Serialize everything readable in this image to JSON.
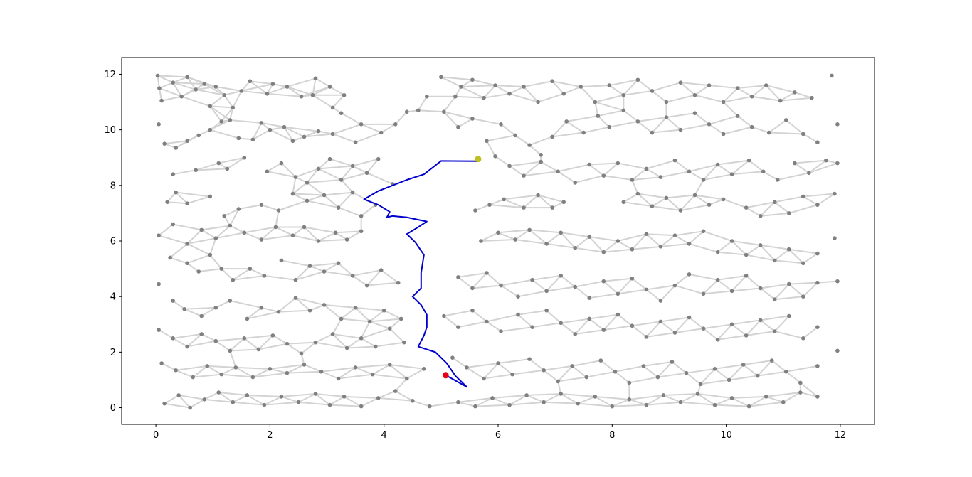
{
  "chart_data": {
    "type": "scatter",
    "title": "",
    "xlabel": "",
    "ylabel": "",
    "xlim": [
      -0.6,
      12.6
    ],
    "ylim": [
      -0.6,
      12.6
    ],
    "x_ticks": [
      "0",
      "2",
      "4",
      "6",
      "8",
      "10",
      "12"
    ],
    "y_ticks": [
      "0",
      "2",
      "4",
      "6",
      "8",
      "10",
      "12"
    ],
    "grid": false,
    "legend": "none",
    "colors": {
      "node": "#808080",
      "edge": "#d3d3d3",
      "path": "#0000cc",
      "start": "#e6001a",
      "goal": "#bfbf20",
      "axes": "#000000"
    },
    "nodes": [
      [
        0.03,
        11.95
      ],
      [
        0.06,
        11.5
      ],
      [
        0.1,
        11.05
      ],
      [
        0.3,
        11.7
      ],
      [
        0.45,
        11.2
      ],
      [
        0.55,
        11.9
      ],
      [
        0.7,
        11.45
      ],
      [
        0.85,
        11.65
      ],
      [
        0.95,
        10.85
      ],
      [
        1.05,
        11.55
      ],
      [
        1.2,
        11.25
      ],
      [
        1.35,
        10.8
      ],
      [
        1.5,
        11.4
      ],
      [
        1.65,
        11.75
      ],
      [
        1.95,
        11.3
      ],
      [
        2.05,
        11.65
      ],
      [
        2.3,
        11.55
      ],
      [
        2.55,
        11.2
      ],
      [
        2.75,
        11.25
      ],
      [
        2.8,
        11.85
      ],
      [
        3.05,
        11.55
      ],
      [
        3.1,
        10.8
      ],
      [
        3.3,
        11.25
      ],
      [
        0.05,
        10.2
      ],
      [
        0.15,
        9.5
      ],
      [
        0.35,
        9.35
      ],
      [
        0.55,
        9.6
      ],
      [
        0.75,
        9.8
      ],
      [
        0.95,
        10
      ],
      [
        1.15,
        10.3
      ],
      [
        1.3,
        10.35
      ],
      [
        1.45,
        9.7
      ],
      [
        1.7,
        9.65
      ],
      [
        1.85,
        10.25
      ],
      [
        2.0,
        10
      ],
      [
        2.25,
        10.1
      ],
      [
        2.4,
        9.6
      ],
      [
        2.6,
        9.75
      ],
      [
        2.85,
        9.95
      ],
      [
        3.1,
        9.85
      ],
      [
        3.25,
        10.6
      ],
      [
        3.5,
        9.55
      ],
      [
        3.6,
        10.2
      ],
      [
        3.95,
        9.9
      ],
      [
        4.2,
        10.2
      ],
      [
        4.4,
        10.65
      ],
      [
        4.6,
        10.7
      ],
      [
        4.75,
        11.2
      ],
      [
        5.05,
        10.65
      ],
      [
        0.3,
        8.4
      ],
      [
        0.7,
        8.55
      ],
      [
        1.1,
        8.8
      ],
      [
        1.25,
        8.6
      ],
      [
        1.55,
        9.0
      ],
      [
        1.95,
        8.5
      ],
      [
        2.2,
        8.8
      ],
      [
        2.45,
        8.3
      ],
      [
        2.65,
        8.1
      ],
      [
        2.85,
        8.6
      ],
      [
        3.05,
        8.95
      ],
      [
        3.25,
        8.2
      ],
      [
        3.45,
        8.7
      ],
      [
        3.7,
        8.45
      ],
      [
        3.9,
        8.95
      ],
      [
        4.15,
        8.05
      ],
      [
        0.2,
        7.4
      ],
      [
        0.35,
        7.75
      ],
      [
        0.55,
        7.35
      ],
      [
        0.95,
        7.6
      ],
      [
        1.2,
        6.9
      ],
      [
        1.45,
        7.15
      ],
      [
        1.85,
        7.3
      ],
      [
        2.15,
        7.1
      ],
      [
        2.4,
        7.7
      ],
      [
        2.65,
        7.45
      ],
      [
        2.95,
        7.65
      ],
      [
        3.2,
        7.2
      ],
      [
        3.45,
        7.75
      ],
      [
        3.6,
        6.9
      ],
      [
        3.85,
        7.3
      ],
      [
        0.05,
        6.2
      ],
      [
        0.3,
        6.6
      ],
      [
        0.55,
        5.9
      ],
      [
        0.8,
        6.4
      ],
      [
        1.05,
        6.1
      ],
      [
        1.3,
        6.55
      ],
      [
        1.55,
        6.3
      ],
      [
        1.85,
        6.05
      ],
      [
        2.1,
        6.5
      ],
      [
        2.4,
        6.2
      ],
      [
        2.6,
        6.5
      ],
      [
        2.85,
        6.0
      ],
      [
        3.15,
        6.3
      ],
      [
        3.35,
        6.05
      ],
      [
        3.6,
        6.35
      ],
      [
        0.25,
        5.4
      ],
      [
        0.55,
        5.2
      ],
      [
        0.75,
        4.9
      ],
      [
        0.95,
        5.5
      ],
      [
        1.15,
        5.0
      ],
      [
        1.35,
        4.6
      ],
      [
        1.65,
        5.0
      ],
      [
        1.9,
        4.75
      ],
      [
        2.2,
        5.3
      ],
      [
        2.45,
        4.6
      ],
      [
        2.7,
        5.1
      ],
      [
        2.95,
        4.9
      ],
      [
        3.2,
        5.2
      ],
      [
        3.45,
        4.75
      ],
      [
        3.7,
        4.4
      ],
      [
        3.95,
        4.95
      ],
      [
        4.25,
        4.5
      ],
      [
        0.05,
        4.45
      ],
      [
        0.3,
        3.85
      ],
      [
        0.5,
        3.55
      ],
      [
        0.8,
        3.3
      ],
      [
        1.05,
        3.6
      ],
      [
        1.3,
        3.85
      ],
      [
        1.6,
        3.2
      ],
      [
        1.85,
        3.6
      ],
      [
        2.15,
        3.45
      ],
      [
        2.45,
        3.95
      ],
      [
        2.7,
        3.5
      ],
      [
        2.95,
        3.7
      ],
      [
        3.25,
        3.2
      ],
      [
        3.5,
        3.6
      ],
      [
        3.75,
        3.1
      ],
      [
        4.0,
        3.5
      ],
      [
        4.3,
        3.2
      ],
      [
        0.05,
        2.8
      ],
      [
        0.3,
        2.5
      ],
      [
        0.55,
        2.2
      ],
      [
        0.8,
        2.65
      ],
      [
        1.05,
        2.4
      ],
      [
        1.3,
        2.05
      ],
      [
        1.55,
        2.5
      ],
      [
        1.8,
        2.1
      ],
      [
        2.05,
        2.6
      ],
      [
        2.3,
        2.3
      ],
      [
        2.55,
        1.95
      ],
      [
        2.8,
        2.35
      ],
      [
        3.1,
        2.65
      ],
      [
        3.35,
        2.15
      ],
      [
        3.6,
        2.5
      ],
      [
        3.85,
        2.2
      ],
      [
        4.1,
        2.85
      ],
      [
        4.35,
        2.35
      ],
      [
        0.1,
        1.6
      ],
      [
        0.35,
        1.35
      ],
      [
        0.65,
        1.1
      ],
      [
        0.9,
        1.5
      ],
      [
        1.15,
        1.2
      ],
      [
        1.4,
        1.45
      ],
      [
        1.7,
        1.1
      ],
      [
        2.0,
        1.4
      ],
      [
        2.3,
        1.25
      ],
      [
        2.6,
        1.55
      ],
      [
        2.9,
        1.3
      ],
      [
        3.2,
        1.05
      ],
      [
        3.5,
        1.45
      ],
      [
        3.8,
        1.2
      ],
      [
        4.1,
        1.55
      ],
      [
        4.4,
        1.05
      ],
      [
        4.7,
        1.4
      ],
      [
        0.15,
        0.15
      ],
      [
        0.4,
        0.45
      ],
      [
        0.6,
        0.0
      ],
      [
        0.85,
        0.3
      ],
      [
        1.1,
        0.55
      ],
      [
        1.35,
        0.2
      ],
      [
        1.6,
        0.45
      ],
      [
        1.9,
        0.1
      ],
      [
        2.2,
        0.4
      ],
      [
        2.5,
        0.2
      ],
      [
        2.8,
        0.5
      ],
      [
        3.05,
        0.1
      ],
      [
        3.3,
        0.4
      ],
      [
        3.6,
        0.05
      ],
      [
        3.9,
        0.35
      ],
      [
        4.2,
        0.6
      ],
      [
        4.5,
        0.25
      ],
      [
        4.8,
        0.05
      ],
      [
        5.0,
        11.9
      ],
      [
        5.25,
        11.2
      ],
      [
        5.35,
        11.55
      ],
      [
        5.55,
        11.8
      ],
      [
        5.75,
        11.15
      ],
      [
        5.95,
        11.6
      ],
      [
        6.2,
        11.3
      ],
      [
        6.45,
        11.55
      ],
      [
        6.7,
        11.0
      ],
      [
        6.95,
        11.75
      ],
      [
        7.15,
        11.3
      ],
      [
        7.45,
        11.55
      ],
      [
        7.7,
        11.0
      ],
      [
        7.95,
        11.6
      ],
      [
        8.2,
        11.25
      ],
      [
        8.45,
        11.8
      ],
      [
        8.7,
        11.4
      ],
      [
        8.95,
        11.0
      ],
      [
        9.2,
        11.7
      ],
      [
        9.45,
        11.25
      ],
      [
        9.7,
        11.6
      ],
      [
        9.95,
        11.0
      ],
      [
        10.2,
        11.5
      ],
      [
        10.45,
        11.2
      ],
      [
        10.7,
        11.6
      ],
      [
        10.95,
        11.05
      ],
      [
        11.2,
        11.35
      ],
      [
        11.5,
        11.15
      ],
      [
        11.85,
        11.95
      ],
      [
        5.3,
        10.1
      ],
      [
        5.55,
        10.4
      ],
      [
        5.8,
        9.6
      ],
      [
        6.05,
        10.2
      ],
      [
        6.3,
        9.8
      ],
      [
        6.55,
        9.45
      ],
      [
        6.75,
        9.1
      ],
      [
        6.95,
        9.75
      ],
      [
        7.2,
        10.3
      ],
      [
        7.5,
        9.9
      ],
      [
        7.75,
        10.5
      ],
      [
        7.95,
        10.1
      ],
      [
        8.2,
        10.7
      ],
      [
        8.45,
        10.3
      ],
      [
        8.7,
        9.9
      ],
      [
        8.95,
        10.45
      ],
      [
        9.2,
        10.0
      ],
      [
        9.45,
        10.6
      ],
      [
        9.7,
        10.2
      ],
      [
        9.95,
        9.85
      ],
      [
        10.2,
        10.5
      ],
      [
        10.45,
        10.1
      ],
      [
        10.75,
        9.9
      ],
      [
        11.05,
        10.35
      ],
      [
        11.35,
        9.85
      ],
      [
        11.6,
        9.55
      ],
      [
        11.95,
        10.2
      ],
      [
        5.95,
        9.05
      ],
      [
        6.2,
        8.7
      ],
      [
        6.45,
        8.35
      ],
      [
        6.75,
        8.85
      ],
      [
        7.05,
        8.5
      ],
      [
        7.35,
        8.1
      ],
      [
        7.6,
        8.75
      ],
      [
        7.85,
        8.35
      ],
      [
        8.1,
        8.8
      ],
      [
        8.35,
        8.2
      ],
      [
        8.6,
        8.6
      ],
      [
        8.85,
        8.3
      ],
      [
        9.1,
        8.9
      ],
      [
        9.35,
        8.5
      ],
      [
        9.6,
        8.2
      ],
      [
        9.85,
        8.75
      ],
      [
        10.1,
        8.4
      ],
      [
        10.4,
        8.9
      ],
      [
        10.65,
        8.5
      ],
      [
        10.9,
        8.2
      ],
      [
        11.2,
        8.8
      ],
      [
        11.45,
        8.45
      ],
      [
        11.75,
        8.9
      ],
      [
        11.95,
        8.8
      ],
      [
        5.6,
        7.1
      ],
      [
        5.85,
        7.3
      ],
      [
        6.1,
        7.5
      ],
      [
        6.45,
        7.2
      ],
      [
        6.7,
        7.65
      ],
      [
        6.95,
        7.2
      ],
      [
        7.15,
        7.4
      ],
      [
        8.2,
        7.4
      ],
      [
        8.45,
        7.7
      ],
      [
        8.7,
        7.25
      ],
      [
        8.95,
        7.55
      ],
      [
        9.2,
        7.1
      ],
      [
        9.45,
        7.65
      ],
      [
        9.7,
        7.3
      ],
      [
        9.95,
        7.5
      ],
      [
        10.35,
        7.2
      ],
      [
        10.6,
        6.9
      ],
      [
        10.85,
        7.4
      ],
      [
        11.1,
        7.0
      ],
      [
        11.35,
        7.6
      ],
      [
        11.6,
        7.3
      ],
      [
        11.9,
        7.7
      ],
      [
        5.7,
        6.0
      ],
      [
        6.0,
        6.3
      ],
      [
        6.3,
        6.05
      ],
      [
        6.55,
        6.4
      ],
      [
        6.85,
        5.9
      ],
      [
        7.1,
        6.3
      ],
      [
        7.35,
        5.75
      ],
      [
        7.6,
        6.15
      ],
      [
        7.85,
        5.6
      ],
      [
        8.1,
        6.0
      ],
      [
        8.35,
        5.7
      ],
      [
        8.6,
        6.25
      ],
      [
        8.85,
        5.8
      ],
      [
        9.1,
        6.2
      ],
      [
        9.35,
        5.9
      ],
      [
        9.6,
        6.35
      ],
      [
        9.85,
        5.6
      ],
      [
        10.1,
        6.0
      ],
      [
        10.35,
        5.5
      ],
      [
        10.6,
        5.85
      ],
      [
        10.85,
        5.3
      ],
      [
        11.1,
        5.7
      ],
      [
        11.35,
        5.2
      ],
      [
        11.6,
        5.55
      ],
      [
        11.9,
        6.1
      ],
      [
        5.3,
        4.7
      ],
      [
        5.55,
        4.3
      ],
      [
        5.8,
        4.85
      ],
      [
        6.05,
        4.4
      ],
      [
        6.35,
        4.0
      ],
      [
        6.6,
        4.6
      ],
      [
        6.85,
        4.2
      ],
      [
        7.1,
        4.75
      ],
      [
        7.35,
        4.35
      ],
      [
        7.6,
        3.95
      ],
      [
        7.85,
        4.55
      ],
      [
        8.1,
        4.1
      ],
      [
        8.35,
        4.65
      ],
      [
        8.6,
        4.25
      ],
      [
        8.85,
        3.85
      ],
      [
        9.1,
        4.4
      ],
      [
        9.35,
        4.8
      ],
      [
        9.6,
        4.1
      ],
      [
        9.85,
        4.6
      ],
      [
        10.1,
        4.2
      ],
      [
        10.35,
        4.75
      ],
      [
        10.6,
        4.3
      ],
      [
        10.85,
        3.9
      ],
      [
        11.1,
        4.45
      ],
      [
        11.35,
        4.0
      ],
      [
        11.6,
        4.5
      ],
      [
        11.95,
        4.55
      ],
      [
        5.05,
        3.3
      ],
      [
        5.3,
        2.9
      ],
      [
        5.55,
        3.5
      ],
      [
        5.8,
        3.1
      ],
      [
        6.05,
        2.75
      ],
      [
        6.35,
        3.35
      ],
      [
        6.6,
        2.9
      ],
      [
        6.85,
        3.5
      ],
      [
        7.1,
        3.05
      ],
      [
        7.35,
        2.65
      ],
      [
        7.6,
        3.2
      ],
      [
        7.85,
        2.8
      ],
      [
        8.1,
        3.35
      ],
      [
        8.35,
        2.95
      ],
      [
        8.6,
        2.55
      ],
      [
        8.85,
        3.1
      ],
      [
        9.1,
        2.7
      ],
      [
        9.35,
        3.25
      ],
      [
        9.6,
        2.85
      ],
      [
        9.85,
        2.45
      ],
      [
        10.1,
        3.0
      ],
      [
        10.35,
        2.6
      ],
      [
        10.6,
        3.15
      ],
      [
        10.85,
        2.75
      ],
      [
        11.1,
        3.3
      ],
      [
        11.35,
        2.5
      ],
      [
        11.6,
        2.9
      ],
      [
        11.95,
        2.05
      ],
      [
        5.2,
        1.8
      ],
      [
        5.45,
        1.45
      ],
      [
        5.75,
        1.05
      ],
      [
        6.0,
        1.6
      ],
      [
        6.25,
        1.2
      ],
      [
        6.55,
        1.75
      ],
      [
        6.8,
        1.35
      ],
      [
        7.05,
        0.95
      ],
      [
        7.3,
        1.5
      ],
      [
        7.55,
        1.1
      ],
      [
        7.8,
        1.7
      ],
      [
        8.05,
        1.3
      ],
      [
        8.3,
        0.9
      ],
      [
        8.55,
        1.5
      ],
      [
        8.8,
        1.1
      ],
      [
        9.05,
        1.65
      ],
      [
        9.3,
        1.25
      ],
      [
        9.55,
        0.85
      ],
      [
        9.8,
        1.4
      ],
      [
        10.05,
        1.0
      ],
      [
        10.3,
        1.55
      ],
      [
        10.55,
        1.15
      ],
      [
        10.8,
        1.7
      ],
      [
        11.05,
        1.3
      ],
      [
        11.3,
        0.9
      ],
      [
        11.6,
        1.5
      ],
      [
        5.3,
        0.2
      ],
      [
        5.6,
        0.05
      ],
      [
        5.9,
        0.35
      ],
      [
        6.2,
        0.1
      ],
      [
        6.5,
        0.45
      ],
      [
        6.8,
        0.2
      ],
      [
        7.1,
        0.5
      ],
      [
        7.4,
        0.15
      ],
      [
        7.7,
        0.4
      ],
      [
        8.0,
        0.05
      ],
      [
        8.3,
        0.3
      ],
      [
        8.6,
        0.1
      ],
      [
        8.9,
        0.45
      ],
      [
        9.2,
        0.2
      ],
      [
        9.5,
        0.5
      ],
      [
        9.8,
        0.1
      ],
      [
        10.1,
        0.35
      ],
      [
        10.4,
        0.05
      ],
      [
        10.7,
        0.4
      ],
      [
        11.0,
        0.2
      ],
      [
        11.3,
        0.55
      ],
      [
        11.6,
        0.4
      ]
    ],
    "path": [
      [
        5.65,
        8.87
      ],
      [
        5.0,
        8.88
      ],
      [
        4.7,
        8.4
      ],
      [
        4.4,
        8.2
      ],
      [
        3.9,
        7.8
      ],
      [
        3.65,
        7.5
      ],
      [
        3.9,
        7.3
      ],
      [
        4.1,
        7.05
      ],
      [
        4.05,
        6.85
      ],
      [
        4.15,
        6.9
      ],
      [
        4.4,
        6.85
      ],
      [
        4.75,
        6.7
      ],
      [
        4.6,
        6.5
      ],
      [
        4.4,
        6.25
      ],
      [
        4.55,
        5.95
      ],
      [
        4.7,
        5.5
      ],
      [
        4.65,
        4.85
      ],
      [
        4.65,
        4.3
      ],
      [
        4.5,
        4.0
      ],
      [
        4.65,
        3.7
      ],
      [
        4.75,
        3.35
      ],
      [
        4.75,
        2.9
      ],
      [
        4.7,
        2.6
      ],
      [
        4.6,
        2.2
      ],
      [
        4.9,
        2.0
      ],
      [
        5.1,
        1.6
      ],
      [
        5.25,
        1.15
      ],
      [
        5.45,
        0.75
      ],
      [
        5.1,
        1.15
      ]
    ],
    "start": [
      5.08,
      1.17
    ],
    "goal": [
      5.65,
      8.95
    ]
  }
}
